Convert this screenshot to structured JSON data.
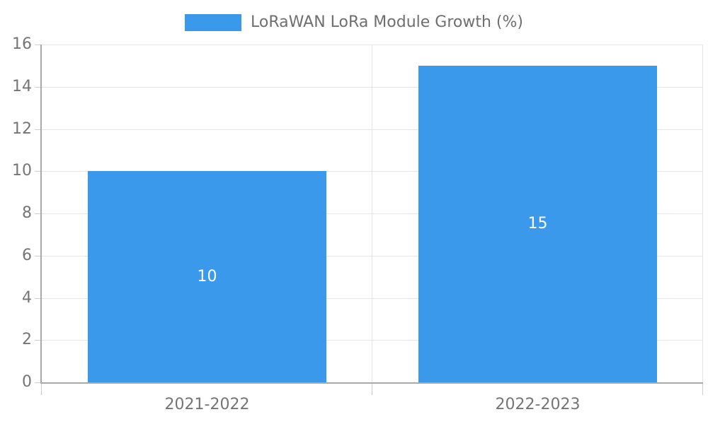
{
  "legend": {
    "label": "LoRaWAN LoRa Module Growth (%)"
  },
  "chart_data": {
    "type": "bar",
    "title": "LoRaWAN LoRa Module Growth (%)",
    "categories": [
      "2021-2022",
      "2022-2023"
    ],
    "series": [
      {
        "name": "LoRaWAN LoRa Module Growth (%)",
        "values": [
          10,
          15
        ],
        "data_labels": [
          "10",
          "15"
        ]
      }
    ],
    "xlabel": "",
    "ylabel": "",
    "ylim": [
      0,
      16
    ],
    "yticks": [
      0,
      2,
      4,
      6,
      8,
      10,
      12,
      14,
      16
    ],
    "grid": true,
    "legend_position": "top-center",
    "colors": {
      "bar": "#3B99EC",
      "grid": "#e4e4e4",
      "axis": "#a9a9a9",
      "tick": "#cdcdcd",
      "tick_text": "#757575",
      "legend_text": "#6f6f6f",
      "value_label_text": "#ffffff",
      "background": "#ffffff"
    }
  }
}
